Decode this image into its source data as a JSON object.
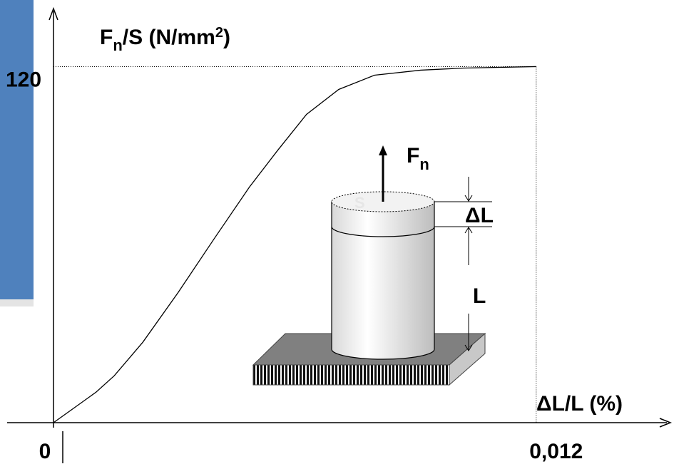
{
  "chart_data": {
    "type": "line",
    "y_label": [
      "F",
      "n",
      "/S (N/mm",
      "2",
      ")"
    ],
    "x_label": "ΔL/L (%)",
    "x": [
      0,
      0.000443,
      0.00106,
      0.00151,
      0.00222,
      0.0031,
      0.00399,
      0.00487,
      0.00558,
      0.00629,
      0.00709,
      0.00798,
      0.00913,
      0.01019,
      0.012
    ],
    "values": [
      0,
      4.3,
      10.3,
      15.8,
      27.1,
      43.9,
      61.9,
      79.4,
      91.9,
      103.9,
      112.3,
      117.1,
      118.8,
      119.5,
      120
    ],
    "color": "#000000",
    "xlim": [
      0,
      0.015
    ],
    "ylim": [
      0,
      135
    ],
    "xticks": [
      0,
      {
        "value": 0.012,
        "label": "0,012"
      }
    ],
    "yticks": [
      120
    ],
    "illustration": {
      "force": "F",
      "force_sub": "n",
      "delta_l": "ΔL",
      "length": "L",
      "surface": "S"
    }
  }
}
